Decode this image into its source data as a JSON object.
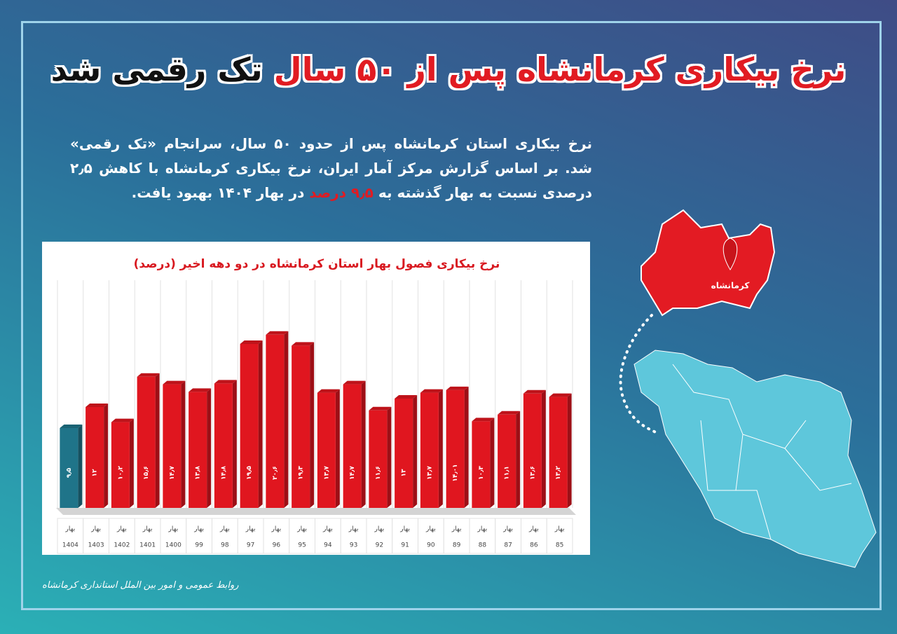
{
  "headline": {
    "red": "نرخ بیکاری کرمانشاه پس از ۵۰ سال",
    "black": "تک رقمی شد"
  },
  "intro": {
    "before": "نرخ بیکاری استان کرمانشاه پس از حدود ۵۰ سال، سرانجام «تک رقمی» شد. بر اساس گزارش مرکز آمار ایران، نرخ بیکاری کرمانشاه با کاهش ۲٫۵ درصدی نسبت به بهار گذشته به",
    "highlight": "۹٫۵ درصد",
    "after": "در بهار ۱۴۰۴ بهبود یافت."
  },
  "map": {
    "label": "کرمانشاه"
  },
  "footer": "روابط عمومی و امور بین الملل استانداری کرمانشاه",
  "chart_data": {
    "type": "bar",
    "title": "نرخ بیکاری فصول بهار استان کرمانشاه در دو دهه اخیر (درصد)",
    "category_prefix": "بهار",
    "categories": [
      "1404",
      "1403",
      "1402",
      "1401",
      "1400",
      "99",
      "98",
      "97",
      "96",
      "95",
      "94",
      "93",
      "92",
      "91",
      "90",
      "89",
      "88",
      "87",
      "86",
      "85"
    ],
    "values": [
      9.5,
      12,
      10.2,
      15.6,
      14.7,
      13.8,
      14.8,
      19.5,
      20.6,
      19.3,
      13.7,
      14.7,
      11.6,
      13,
      13.7,
      14.01,
      10.3,
      11.1,
      13.6,
      13.2
    ],
    "value_labels": [
      "۹٫۵",
      "۱۲",
      "۱۰٫۲",
      "۱۵٫۶",
      "۱۴٫۷",
      "۱۳٫۸",
      "۱۴٫۸",
      "۱۹٫۵",
      "۲۰٫۶",
      "۱۹٫۳",
      "۱۳٫۷",
      "۱۴٫۷",
      "۱۱٫۶",
      "۱۳",
      "۱۳٫۷",
      "۱۴٫۰۱",
      "۱۰٫۳",
      "۱۱٫۱",
      "۱۳٫۶",
      "۱۳٫۲"
    ],
    "colors": [
      "#1f7489",
      "#e0161f",
      "#e0161f",
      "#e0161f",
      "#e0161f",
      "#e0161f",
      "#e0161f",
      "#e0161f",
      "#e0161f",
      "#e0161f",
      "#e0161f",
      "#e0161f",
      "#e0161f",
      "#e0161f",
      "#e0161f",
      "#e0161f",
      "#e0161f",
      "#e0161f",
      "#e0161f",
      "#e0161f"
    ],
    "ylim": [
      0,
      27
    ]
  }
}
